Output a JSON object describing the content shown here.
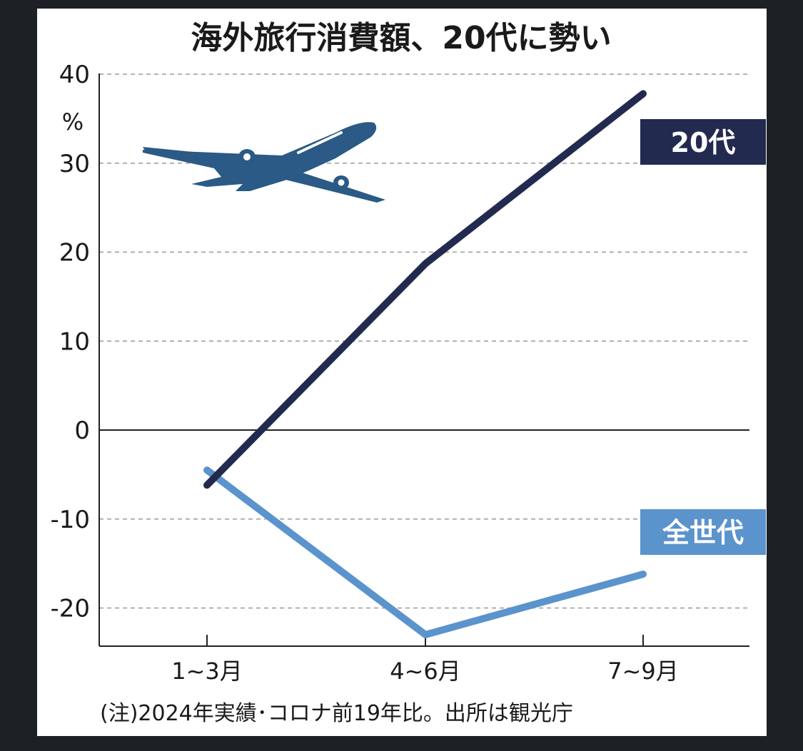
{
  "chart_data": {
    "type": "line",
    "title": "海外旅行消費額、20代に勢い",
    "ylabel": "%",
    "xlabel": "",
    "categories": [
      "1~3月",
      "4~6月",
      "7~9月"
    ],
    "ylim": [
      -24,
      40
    ],
    "yticks": [
      40,
      30,
      20,
      10,
      0,
      -10,
      -20
    ],
    "grid": true,
    "legend": "right",
    "series": [
      {
        "name": "20代",
        "values": [
          -6.2,
          18.7,
          37.8
        ],
        "color": "#232a4f"
      },
      {
        "name": "全世代",
        "values": [
          -4.5,
          -23.0,
          -16.2
        ],
        "color": "#5b93cc"
      }
    ],
    "note": "(注)2024年実績･コロナ前19年比。出所は観光庁"
  },
  "icons": {
    "airplane": "airplane-icon",
    "airplane_color": "#2a5a85"
  }
}
